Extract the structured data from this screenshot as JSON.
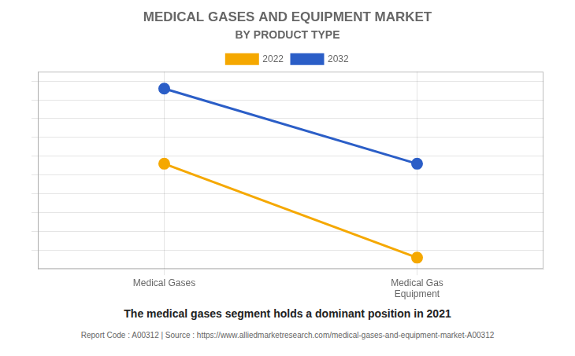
{
  "chart_data": {
    "type": "line",
    "title": "MEDICAL GASES AND EQUIPMENT MARKET",
    "subtitle": "BY PRODUCT TYPE",
    "categories": [
      "Medical Gases",
      "Medical Gas\nEquipment"
    ],
    "series": [
      {
        "name": "2022",
        "color": "#F5A800",
        "values": [
          0.56,
          0.06
        ]
      },
      {
        "name": "2032",
        "color": "#2B5EC7",
        "values": [
          0.96,
          0.56
        ]
      }
    ],
    "ylim": [
      0.0,
      1.05
    ],
    "yticks": [
      0.1,
      0.2,
      0.3,
      0.4,
      0.5,
      0.6,
      0.7,
      0.8,
      0.9,
      1.0
    ],
    "grid": true,
    "legend": "top",
    "tick_labels": "x",
    "marker": "circle",
    "annotation": "The medical gases segment holds a dominant position in 2021",
    "footer": "Report Code : A00312  |  Source : https://www.alliedmarketresearch.com/medical-gases-and-equipment-market-A00312"
  }
}
